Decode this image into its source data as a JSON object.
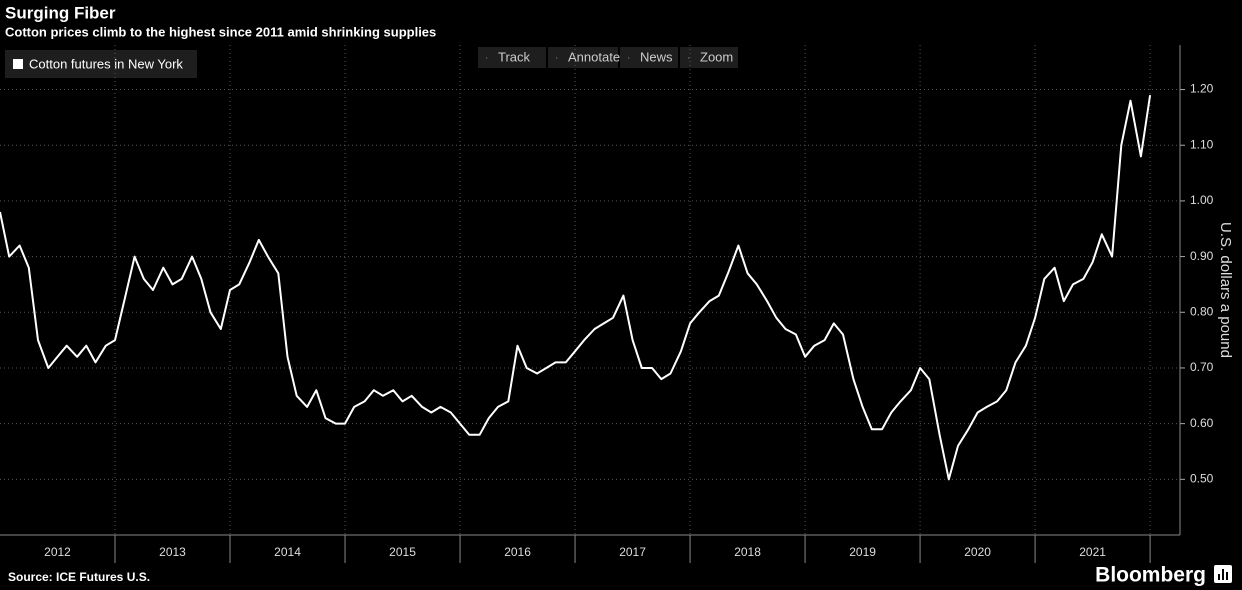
{
  "chart_data": {
    "type": "line",
    "title": "Surging Fiber",
    "subtitle": "Cotton prices climb to the highest since 2011 amid shrinking supplies",
    "y_axis_label": "U.S. dollars a pound",
    "source": "Source: ICE Futures U.S.",
    "brand": "Bloomberg",
    "x": [
      2012.0,
      2012.08,
      2012.17,
      2012.25,
      2012.33,
      2012.42,
      2012.5,
      2012.58,
      2012.67,
      2012.75,
      2012.83,
      2012.92,
      2013.0,
      2013.08,
      2013.17,
      2013.25,
      2013.33,
      2013.42,
      2013.5,
      2013.58,
      2013.67,
      2013.75,
      2013.83,
      2013.92,
      2014.0,
      2014.08,
      2014.17,
      2014.25,
      2014.33,
      2014.42,
      2014.5,
      2014.58,
      2014.67,
      2014.75,
      2014.83,
      2014.92,
      2015.0,
      2015.08,
      2015.17,
      2015.25,
      2015.33,
      2015.42,
      2015.5,
      2015.58,
      2015.67,
      2015.75,
      2015.83,
      2015.92,
      2016.0,
      2016.08,
      2016.17,
      2016.25,
      2016.33,
      2016.42,
      2016.5,
      2016.58,
      2016.67,
      2016.75,
      2016.83,
      2016.92,
      2017.0,
      2017.08,
      2017.17,
      2017.25,
      2017.33,
      2017.42,
      2017.5,
      2017.58,
      2017.67,
      2017.75,
      2017.83,
      2017.92,
      2018.0,
      2018.08,
      2018.17,
      2018.25,
      2018.33,
      2018.42,
      2018.5,
      2018.58,
      2018.67,
      2018.75,
      2018.83,
      2018.92,
      2019.0,
      2019.08,
      2019.17,
      2019.25,
      2019.33,
      2019.42,
      2019.5,
      2019.58,
      2019.67,
      2019.75,
      2019.83,
      2019.92,
      2020.0,
      2020.08,
      2020.17,
      2020.25,
      2020.33,
      2020.42,
      2020.5,
      2020.58,
      2020.67,
      2020.75,
      2020.83,
      2020.92,
      2021.0,
      2021.08,
      2021.17,
      2021.25,
      2021.33,
      2021.42,
      2021.5,
      2021.58,
      2021.67,
      2021.75,
      2021.83,
      2021.92,
      2022.0
    ],
    "series": [
      {
        "name": "Cotton futures in New York",
        "color": "#ffffff",
        "values": [
          0.98,
          0.9,
          0.92,
          0.88,
          0.75,
          0.7,
          0.72,
          0.74,
          0.72,
          0.74,
          0.71,
          0.74,
          0.75,
          0.82,
          0.9,
          0.86,
          0.84,
          0.88,
          0.85,
          0.86,
          0.9,
          0.86,
          0.8,
          0.77,
          0.84,
          0.85,
          0.89,
          0.93,
          0.9,
          0.87,
          0.72,
          0.65,
          0.63,
          0.66,
          0.61,
          0.6,
          0.6,
          0.63,
          0.64,
          0.66,
          0.65,
          0.66,
          0.64,
          0.65,
          0.63,
          0.62,
          0.63,
          0.62,
          0.6,
          0.58,
          0.58,
          0.61,
          0.63,
          0.64,
          0.74,
          0.7,
          0.69,
          0.7,
          0.71,
          0.71,
          0.73,
          0.75,
          0.77,
          0.78,
          0.79,
          0.83,
          0.75,
          0.7,
          0.7,
          0.68,
          0.69,
          0.73,
          0.78,
          0.8,
          0.82,
          0.83,
          0.87,
          0.92,
          0.87,
          0.85,
          0.82,
          0.79,
          0.77,
          0.76,
          0.72,
          0.74,
          0.75,
          0.78,
          0.76,
          0.68,
          0.63,
          0.59,
          0.59,
          0.62,
          0.64,
          0.66,
          0.7,
          0.68,
          0.58,
          0.5,
          0.56,
          0.59,
          0.62,
          0.63,
          0.64,
          0.66,
          0.71,
          0.74,
          0.79,
          0.86,
          0.88,
          0.82,
          0.85,
          0.86,
          0.89,
          0.94,
          0.9,
          1.1,
          1.18,
          1.08,
          1.19
        ]
      }
    ],
    "xlim": [
      2012,
      2022.26
    ],
    "xticks": [
      {
        "value": 2012.5,
        "label": "2012"
      },
      {
        "value": 2013.5,
        "label": "2013"
      },
      {
        "value": 2014.5,
        "label": "2014"
      },
      {
        "value": 2015.5,
        "label": "2015"
      },
      {
        "value": 2016.5,
        "label": "2016"
      },
      {
        "value": 2017.5,
        "label": "2017"
      },
      {
        "value": 2018.5,
        "label": "2018"
      },
      {
        "value": 2019.5,
        "label": "2019"
      },
      {
        "value": 2020.5,
        "label": "2020"
      },
      {
        "value": 2021.5,
        "label": "2021"
      }
    ],
    "xgrid": [
      2013,
      2014,
      2015,
      2016,
      2017,
      2018,
      2019,
      2020,
      2021,
      2022
    ],
    "ylim": [
      0.4,
      1.28
    ],
    "yticks": [
      {
        "value": 0.5,
        "label": "0.50"
      },
      {
        "value": 0.6,
        "label": "0.60"
      },
      {
        "value": 0.7,
        "label": "0.70"
      },
      {
        "value": 0.8,
        "label": "0.80"
      },
      {
        "value": 0.9,
        "label": "0.90"
      },
      {
        "value": 1.0,
        "label": "1.00"
      },
      {
        "value": 1.1,
        "label": "1.10"
      },
      {
        "value": 1.2,
        "label": "1.20"
      }
    ],
    "grid": true
  },
  "toolbar": {
    "buttons": [
      "Track",
      "Annotate",
      "News",
      "Zoom"
    ]
  }
}
